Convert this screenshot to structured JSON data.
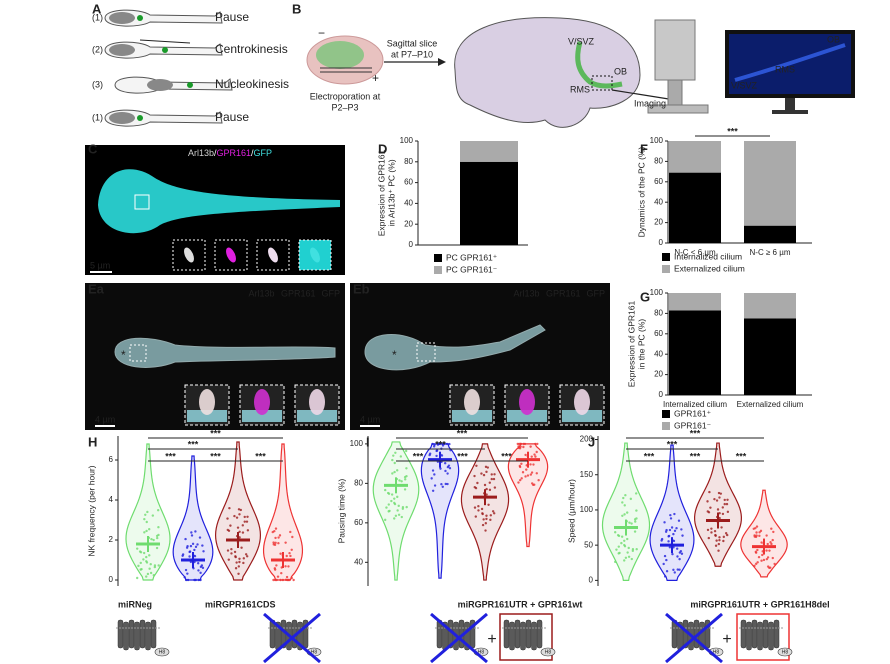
{
  "panel_labels": [
    "A",
    "B",
    "C",
    "D",
    "Ea",
    "Eb",
    "F",
    "G",
    "H",
    "I",
    "J"
  ],
  "panel_a": {
    "steps": [
      {
        "index": "(1)",
        "label": "Pause"
      },
      {
        "index": "(2)",
        "label": "Centrokinesis"
      },
      {
        "index": "(3)",
        "label": "Nucleokinesis"
      },
      {
        "index": "(1)",
        "label": "Pause"
      }
    ]
  },
  "panel_b": {
    "minus": "−",
    "plus": "+",
    "electroporation": [
      "Electroporation at",
      "P2–P3"
    ],
    "slice": [
      "Sagittal slice",
      "at P7–P10"
    ],
    "vsvz": "V/SVZ",
    "ob": "OB",
    "rms": "RMS",
    "imaging": "Imaging",
    "screen_ob": "OB",
    "screen_rms": "RMS",
    "screen_vsvz": "V/SVZ"
  },
  "panel_c": {
    "legend": [
      {
        "text": "Arl13b",
        "color": "#cfcfcf"
      },
      {
        "text": "/",
        "color": "#ffffff"
      },
      {
        "text": "GPR161",
        "color": "#e020e0"
      },
      {
        "text": "/",
        "color": "#ffffff"
      },
      {
        "text": "GFP",
        "color": "#40e0e0"
      }
    ],
    "scale": "5 µm"
  },
  "panel_ea": {
    "legend": [
      {
        "text": "Arl13b",
        "color": "#dddddd"
      },
      {
        "text": "GPR161",
        "color": "#e020e0"
      },
      {
        "text": "GFP",
        "color": "#40e0e0"
      }
    ],
    "marker": "*",
    "scale": "4 µm"
  },
  "panel_eb": {
    "legend": [
      {
        "text": "Arl13b",
        "color": "#dddddd"
      },
      {
        "text": "GPR161",
        "color": "#e020e0"
      },
      {
        "text": "GFP",
        "color": "#40e0e0"
      }
    ],
    "marker": "*",
    "scale": "4 µm"
  },
  "conditions": [
    {
      "name": "miRNeg",
      "color": "#6fdc6f"
    },
    {
      "name": "miRGPR161CDS",
      "color": "#2020dd"
    },
    {
      "name": "miRGPR161UTR + GPR161wt",
      "color": "#9b1c1c"
    },
    {
      "name": "miRGPR161UTR + GPR161H8del",
      "color": "#ee3333"
    }
  ],
  "receptor": {
    "plus": "+",
    "helix": "H8"
  },
  "chart_data": [
    {
      "type": "stacked_bar",
      "ylabel": [
        "Expression of GPR161",
        "in Arl13b⁺ PC (%)"
      ],
      "categories": [
        null
      ],
      "series": [
        {
          "name": "PC GPR161⁺",
          "color": "#000000",
          "values": [
            80
          ]
        },
        {
          "name": "PC GPR161⁻",
          "color": "#aaaaaa",
          "values": [
            20
          ]
        }
      ],
      "ylim": [
        0,
        100
      ],
      "yticks": [
        0,
        20,
        40,
        60,
        80,
        100
      ]
    },
    {
      "type": "stacked_bar",
      "ylabel": [
        "Dynamics of the PC (%)"
      ],
      "categories": [
        "N-C < 6 µm",
        "N-C ≥ 6 µm"
      ],
      "series": [
        {
          "name": "Internalized cilium",
          "color": "#000000",
          "values": [
            69,
            17
          ]
        },
        {
          "name": "Externalized cilium",
          "color": "#aaaaaa",
          "values": [
            31,
            83
          ]
        }
      ],
      "ylim": [
        0,
        100
      ],
      "yticks": [
        0,
        20,
        40,
        60,
        80,
        100
      ],
      "annotations": [
        "***"
      ]
    },
    {
      "type": "stacked_bar",
      "ylabel": [
        "Expression of GPR161",
        "in the PC (%)"
      ],
      "categories": [
        "Internalized cilium",
        "Externalized cilium"
      ],
      "series": [
        {
          "name": "GPR161⁺",
          "color": "#000000",
          "values": [
            83,
            75
          ]
        },
        {
          "name": "GPR161⁻",
          "color": "#aaaaaa",
          "values": [
            17,
            25
          ]
        }
      ],
      "ylim": [
        0,
        100
      ],
      "yticks": [
        0,
        20,
        40,
        60,
        80,
        100
      ]
    },
    {
      "type": "violin",
      "ylabel": [
        "NK frequency (per hour)"
      ],
      "categories": [
        null,
        null,
        null,
        null
      ],
      "medians": [
        1.8,
        1.0,
        2.0,
        1.0
      ],
      "ranges": [
        [
          0,
          6.8
        ],
        [
          0,
          6.2
        ],
        [
          0,
          6.9
        ],
        [
          0,
          6.8
        ]
      ],
      "ylim": [
        -0.3,
        7.2
      ],
      "yticks": [
        0,
        2,
        4,
        6
      ],
      "annotations": [
        "***",
        "***",
        "***",
        "***",
        "***"
      ]
    },
    {
      "type": "violin",
      "ylabel": [
        "Pausing time (%)"
      ],
      "categories": [
        null,
        null,
        null,
        null
      ],
      "medians": [
        79,
        92,
        73,
        92
      ],
      "ranges": [
        [
          31,
          101
        ],
        [
          32,
          100
        ],
        [
          31,
          100
        ],
        [
          48,
          100
        ]
      ],
      "ylim": [
        28,
        104
      ],
      "yticks": [
        40,
        60,
        80,
        100
      ],
      "annotations": [
        "***",
        "***",
        "***",
        "***",
        "***"
      ]
    },
    {
      "type": "violin",
      "ylabel": [
        "Speed (µm/hour)"
      ],
      "categories": [
        null,
        null,
        null,
        null
      ],
      "medians": [
        75,
        50,
        85,
        48
      ],
      "ranges": [
        [
          0,
          195
        ],
        [
          0,
          192
        ],
        [
          20,
          195
        ],
        [
          5,
          128
        ]
      ],
      "ylim": [
        -8,
        205
      ],
      "yticks": [
        0,
        50,
        100,
        150,
        200
      ],
      "annotations": [
        "***",
        "***",
        "***",
        "***",
        "***"
      ]
    }
  ]
}
